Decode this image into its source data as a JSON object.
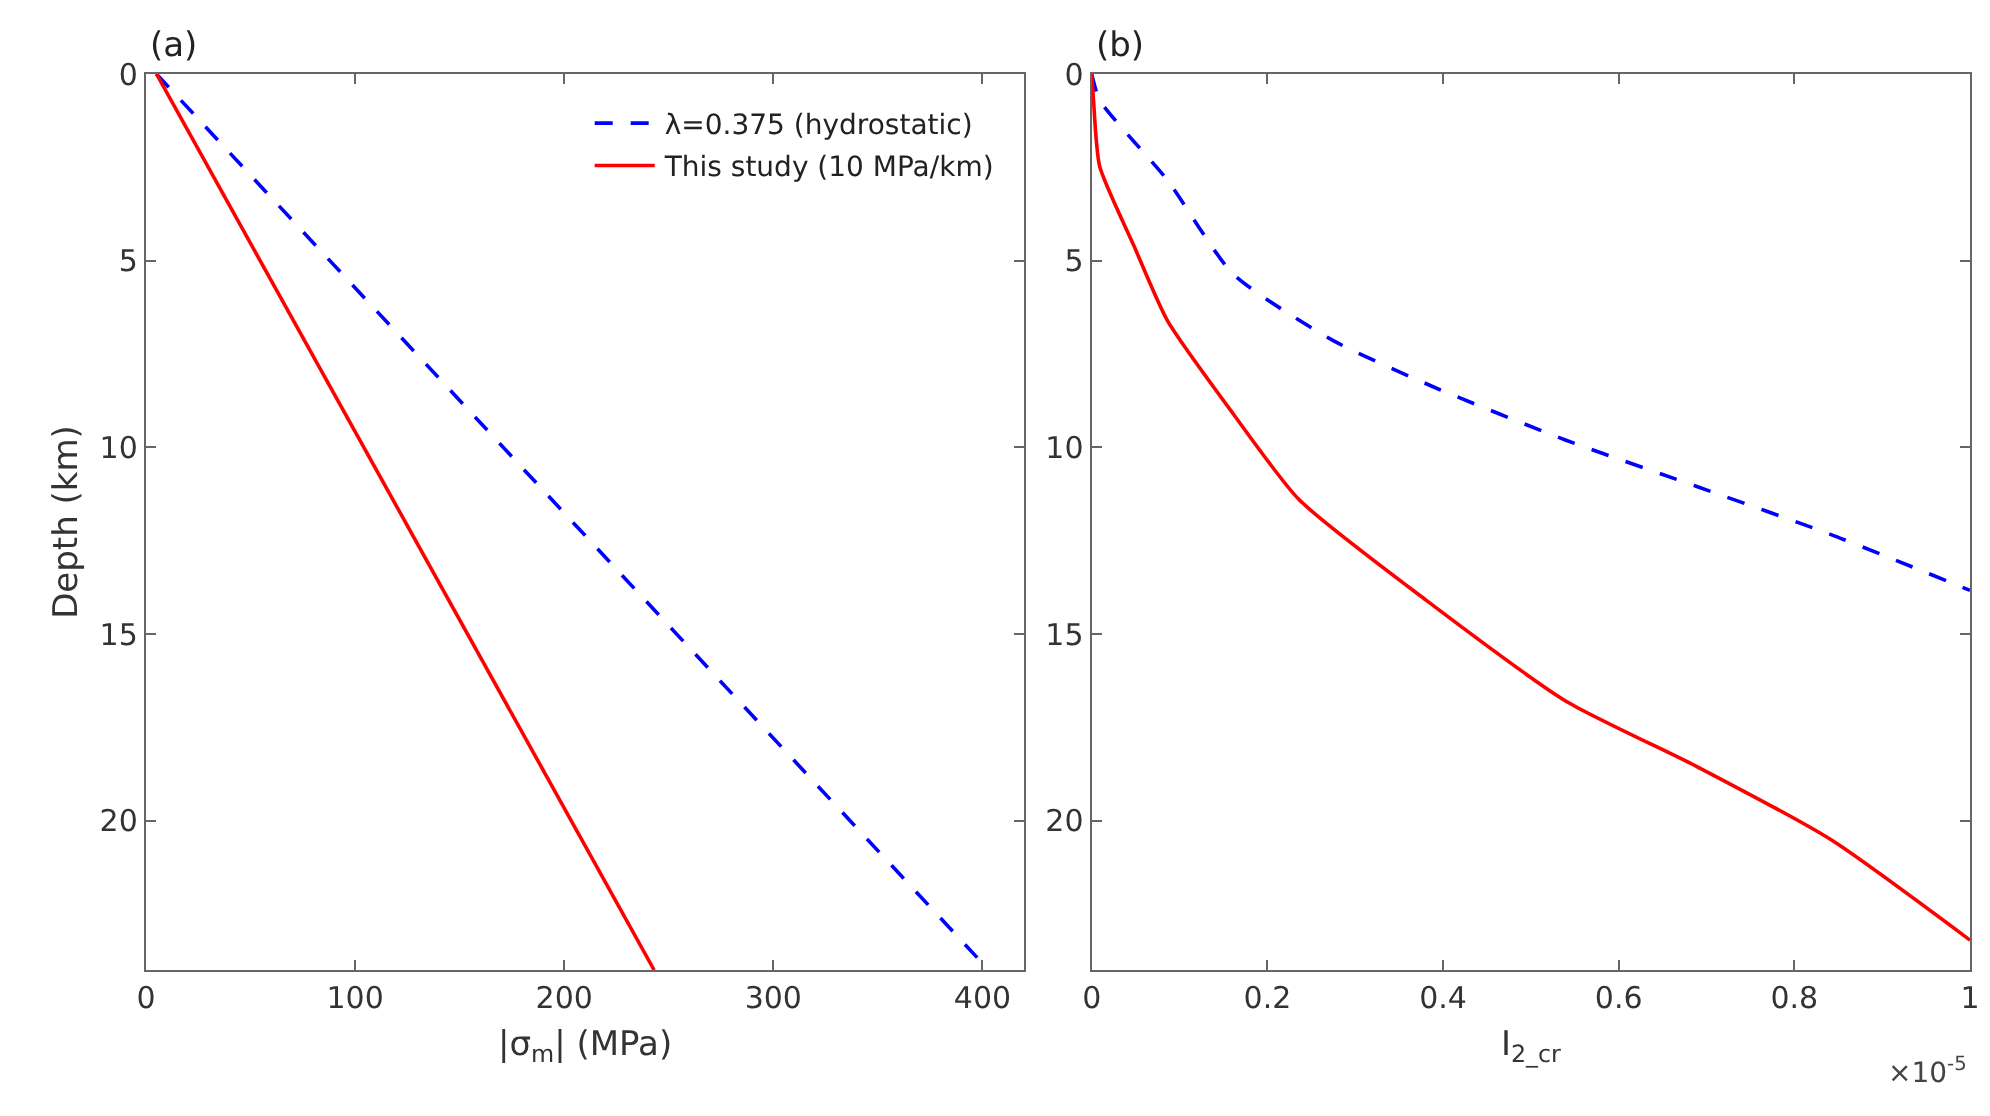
{
  "chart_data": [
    {
      "type": "line",
      "title": "(a)",
      "xlabel": "|σ$_{m}$| (MPa)",
      "ylabel": "Depth (km)",
      "xlim": [
        0,
        420
      ],
      "xticks": [
        0,
        100,
        200,
        300,
        400
      ],
      "ylim": [
        24,
        0
      ],
      "yticks": [
        0,
        5,
        10,
        15,
        20
      ],
      "legend": "top right",
      "marker": "none",
      "series": [
        {
          "name": "λ=0.375 (hydrostatic)",
          "color": "#0000ff",
          "line_style": "dashed",
          "x": [
            5,
            403
          ],
          "values": [
            0,
            24
          ]
        },
        {
          "name": "This study (10 MPa/km)",
          "color": "#ff0000",
          "line_style": "solid",
          "x": [
            5,
            243
          ],
          "values": [
            0,
            24
          ]
        }
      ]
    },
    {
      "type": "line",
      "title": "(b)",
      "xlabel": "I$_{2_cr}$",
      "annotations": [
        "×10$^{-5}$"
      ],
      "xlim": [
        0,
        1
      ],
      "xticks": [
        0,
        0.2,
        0.4,
        0.6,
        0.8,
        1
      ],
      "ylim": [
        24,
        0
      ],
      "yticks": [
        0,
        5,
        10,
        15,
        20
      ],
      "legend": false,
      "marker": "none",
      "series": [
        {
          "color": "#0000ff",
          "line_style": "dashed",
          "x": [
            0,
            0.009,
            0.086,
            0.161,
            0.274,
            0.388,
            0.54,
            0.689,
            0.841,
            1
          ],
          "values": [
            0,
            0.7,
            2.84,
            5.36,
            7.13,
            8.37,
            9.81,
            11.05,
            12.33,
            13.83
          ]
        },
        {
          "color": "#ff0000",
          "line_style": "solid",
          "x": [
            0,
            0.002,
            0.009,
            0.048,
            0.086,
            0.161,
            0.236,
            0.381,
            0.54,
            0.689,
            0.841,
            1
          ],
          "values": [
            0,
            0.7,
            2.47,
            4.6,
            6.6,
            9.1,
            11.4,
            14.1,
            16.8,
            18.55,
            20.5,
            23.2
          ]
        }
      ]
    }
  ]
}
